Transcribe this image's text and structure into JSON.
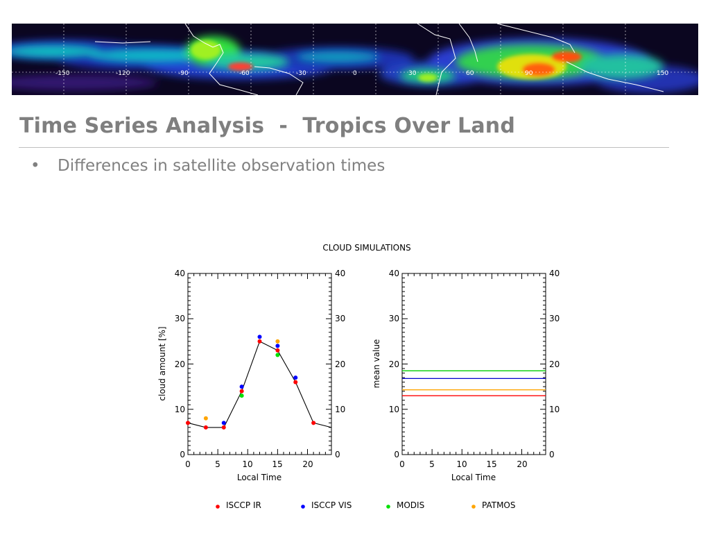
{
  "slide": {
    "title": "Time Series Analysis  -  Tropics Over Land",
    "bullets": [
      "Differences in satellite observation times"
    ]
  },
  "banner": {
    "longitude_labels": [
      "-150",
      "-120",
      "-90",
      "-60",
      "-30",
      "0",
      "30",
      "60",
      "90",
      "150"
    ],
    "description_icon": "satellite-cloud-map"
  },
  "chart_data": [
    {
      "type": "scatter",
      "title": "CLOUD SIMULATIONS",
      "xlabel": "Local Time",
      "ylabel": "cloud amount [%]",
      "xlim": [
        0,
        24
      ],
      "ylim": [
        0,
        40
      ],
      "xticks": [
        "0",
        "5",
        "10",
        "15",
        "20"
      ],
      "yticks": [
        "0",
        "10",
        "20",
        "30",
        "40"
      ],
      "grid": false,
      "legend": "bottom",
      "series": [
        {
          "name": "ISCCP IR",
          "color": "#ff0000",
          "x": [
            0,
            3,
            6,
            9,
            12,
            15,
            18,
            21
          ],
          "y": [
            7,
            6,
            6,
            14,
            25,
            23,
            16,
            7
          ]
        },
        {
          "name": "ISCCP VIS",
          "color": "#0000ff",
          "x": [
            6,
            9,
            12,
            15,
            18
          ],
          "y": [
            7,
            15,
            26,
            24,
            17
          ]
        },
        {
          "name": "MODIS",
          "color": "#00e000",
          "x": [
            9,
            15
          ],
          "y": [
            13,
            22
          ]
        },
        {
          "name": "PATMOS",
          "color": "#ffa500",
          "x": [
            3,
            15
          ],
          "y": [
            8,
            25
          ]
        }
      ],
      "mean_line": {
        "color": "#000000",
        "x": [
          0,
          3,
          6,
          9,
          12,
          15,
          18,
          21,
          24
        ],
        "y": [
          7,
          6,
          6,
          14,
          25,
          23,
          16,
          7,
          6
        ]
      }
    },
    {
      "type": "line",
      "xlabel": "Local Time",
      "ylabel": "mean value",
      "xlim": [
        0,
        24
      ],
      "ylim": [
        0,
        40
      ],
      "xticks": [
        "0",
        "5",
        "10",
        "15",
        "20"
      ],
      "yticks": [
        "0",
        "10",
        "20",
        "30",
        "40"
      ],
      "grid": false,
      "series": [
        {
          "name": "MODIS",
          "color": "#00cc00",
          "value": 18.5
        },
        {
          "name": "ISCCP VIS",
          "color": "#0000cc",
          "value": 16.8
        },
        {
          "name": "PATMOS",
          "color": "#ffa500",
          "value": 14.3
        },
        {
          "name": "ISCCP IR",
          "color": "#ff0000",
          "value": 13.0
        }
      ]
    }
  ],
  "legend": [
    {
      "label": "ISCCP IR",
      "color": "#ff0000"
    },
    {
      "label": "ISCCP VIS",
      "color": "#0000ff"
    },
    {
      "label": "MODIS",
      "color": "#00e000"
    },
    {
      "label": "PATMOS",
      "color": "#ffa500"
    }
  ]
}
